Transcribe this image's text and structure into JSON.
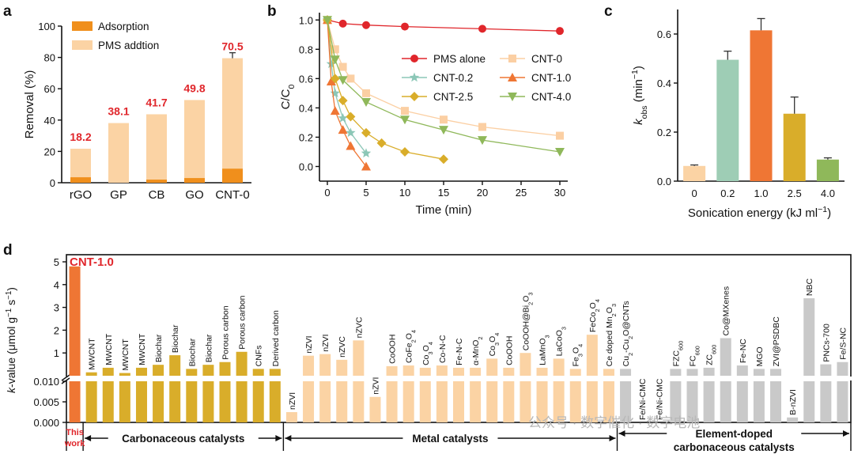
{
  "watermark": "公众号 · 数字催化 · 数字电池",
  "colors": {
    "adsorption": "#f08f1c",
    "pms": "#fbd3a4",
    "red_label": "#e0262b",
    "cnt10_bar": "#ef7634",
    "carbon_bar": "#d9ad2a",
    "metal_bar": "#fbd3a4",
    "doped_bar": "#c9c9c9"
  },
  "chart_data": [
    {
      "panel": "a",
      "type": "bar",
      "stacked": true,
      "categories": [
        "rGO",
        "GP",
        "CB",
        "GO",
        "CNT-0"
      ],
      "series": [
        {
          "name": "Adsorption",
          "values": [
            3.5,
            0,
            2,
            3,
            9
          ]
        },
        {
          "name": "PMS addtion",
          "values": [
            18.2,
            38.1,
            41.7,
            49.8,
            70.5
          ]
        }
      ],
      "labels": [
        "18.2",
        "38.1",
        "41.7",
        "49.8",
        "70.5"
      ],
      "error_total": [
        0,
        0,
        0,
        0,
        3.5
      ],
      "ylabel": "Removal (%)",
      "ylim": [
        0,
        100
      ],
      "yticks": [
        "0",
        "20",
        "40",
        "60",
        "80",
        "100"
      ],
      "legend": "top-left"
    },
    {
      "panel": "b",
      "type": "line",
      "xlabel": "Time (min)",
      "ylabel": "C/C0",
      "xlim": [
        0,
        30
      ],
      "ylim": [
        -0.1,
        1.05
      ],
      "xticks": [
        "0",
        "5",
        "10",
        "15",
        "20",
        "25",
        "30"
      ],
      "yticks": [
        "0.0",
        "0.2",
        "0.4",
        "0.6",
        "0.8",
        "1.0"
      ],
      "series": [
        {
          "name": "PMS alone",
          "color": "#e0262b",
          "marker": "circle",
          "x": [
            0,
            2,
            5,
            10,
            20,
            30
          ],
          "y": [
            1.0,
            0.975,
            0.965,
            0.955,
            0.94,
            0.925
          ]
        },
        {
          "name": "CNT-0",
          "color": "#fbcfa3",
          "marker": "square",
          "x": [
            0,
            1,
            2,
            3,
            5,
            10,
            15,
            20,
            30
          ],
          "y": [
            1.0,
            0.8,
            0.68,
            0.6,
            0.5,
            0.38,
            0.32,
            0.27,
            0.21
          ]
        },
        {
          "name": "CNT-0.2",
          "color": "#8cc7b7",
          "marker": "star",
          "x": [
            0,
            0.5,
            1,
            2,
            3,
            5
          ],
          "y": [
            1.0,
            0.7,
            0.5,
            0.33,
            0.23,
            0.09
          ]
        },
        {
          "name": "CNT-1.0",
          "color": "#ef7634",
          "marker": "triangle-up",
          "x": [
            0,
            0.5,
            1,
            2,
            3,
            5
          ],
          "y": [
            1.0,
            0.58,
            0.38,
            0.25,
            0.14,
            0.0
          ]
        },
        {
          "name": "CNT-2.5",
          "color": "#d9ad2a",
          "marker": "diamond",
          "x": [
            0,
            1,
            2,
            3,
            5,
            7,
            10,
            15
          ],
          "y": [
            1.0,
            0.6,
            0.45,
            0.34,
            0.23,
            0.16,
            0.1,
            0.05
          ]
        },
        {
          "name": "CNT-4.0",
          "color": "#8fb85a",
          "marker": "triangle-down",
          "x": [
            0,
            1,
            2,
            5,
            10,
            15,
            20,
            30
          ],
          "y": [
            1.0,
            0.73,
            0.59,
            0.44,
            0.32,
            0.25,
            0.18,
            0.1
          ]
        }
      ]
    },
    {
      "panel": "c",
      "type": "bar",
      "categories": [
        "0",
        "0.2",
        "1.0",
        "2.5",
        "4.0"
      ],
      "values": [
        0.062,
        0.495,
        0.615,
        0.275,
        0.088
      ],
      "errors": [
        0.004,
        0.035,
        0.048,
        0.068,
        0.007
      ],
      "colors": [
        "#fbd3a4",
        "#9ecdb5",
        "#ef7634",
        "#d9ad2a",
        "#8fb85a"
      ],
      "xlabel": "Sonication energy (kJ ml-1)",
      "ylabel": "kobs (min-1)",
      "ylim": [
        0,
        0.7
      ],
      "yticks": [
        "0.0",
        "0.2",
        "0.4",
        "0.6"
      ]
    },
    {
      "panel": "d",
      "type": "bar",
      "ylabel": "k-value (μmol g-1 s-1)",
      "ylim_lower": [
        0,
        0.01
      ],
      "ylim_upper": [
        0.5,
        5
      ],
      "yticks_lower": [
        "0.000",
        "0.005",
        "0.010"
      ],
      "yticks_upper": [
        "1",
        "2",
        "3",
        "4",
        "5"
      ],
      "highlight_label": "CNT-1.0",
      "group_labels": [
        "This work",
        "Carbonaceous catalysts",
        "Metal catalysts",
        "Element-doped carbonaceous catalysts"
      ],
      "items": [
        {
          "label": "CNT-1.0",
          "group": "this",
          "value": 4.8
        },
        {
          "label": "MWCNT",
          "group": "carbon",
          "value": 0.15
        },
        {
          "label": "MWCNT",
          "group": "carbon",
          "value": 0.35
        },
        {
          "label": "MWCNT",
          "group": "carbon",
          "value": 0.05
        },
        {
          "label": "MWCNT",
          "group": "carbon",
          "value": 0.35
        },
        {
          "label": "Biochar",
          "group": "carbon",
          "value": 0.48
        },
        {
          "label": "Biochar",
          "group": "carbon",
          "value": 0.9
        },
        {
          "label": "Biochar",
          "group": "carbon",
          "value": 0.3
        },
        {
          "label": "Biochar",
          "group": "carbon",
          "value": 0.48
        },
        {
          "label": "Porous carbon",
          "group": "carbon",
          "value": 0.6
        },
        {
          "label": "Porous carbon",
          "group": "carbon",
          "value": 1.05
        },
        {
          "label": "CNFs",
          "group": "carbon",
          "value": 0.3
        },
        {
          "label": "Derived carbon",
          "group": "carbon",
          "value": 0.3
        },
        {
          "label": "nZVI",
          "group": "metal",
          "value": 0.0025
        },
        {
          "label": "nZVI",
          "group": "metal",
          "value": 0.88
        },
        {
          "label": "nZVI",
          "group": "metal",
          "value": 0.95
        },
        {
          "label": "nZVC",
          "group": "metal",
          "value": 0.7
        },
        {
          "label": "nZVC",
          "group": "metal",
          "value": 1.55
        },
        {
          "label": "nZVI",
          "group": "metal",
          "value": 0.0062
        },
        {
          "label": "CoOOH",
          "group": "metal",
          "value": 0.42
        },
        {
          "label": "CoFe2O4",
          "group": "metal",
          "value": 0.45
        },
        {
          "label": "Co3O4",
          "group": "metal",
          "value": 0.35
        },
        {
          "label": "Co-N-C",
          "group": "metal",
          "value": 0.45
        },
        {
          "label": "Fe-N-C",
          "group": "metal",
          "value": 0.35
        },
        {
          "label": "α-MnO2",
          "group": "metal",
          "value": 0.35
        },
        {
          "label": "Co3O4",
          "group": "metal",
          "value": 0.75
        },
        {
          "label": "CoOOH",
          "group": "metal",
          "value": 0.35
        },
        {
          "label": "CoOOH@Bi2O3",
          "group": "metal",
          "value": 1.0
        },
        {
          "label": "LaMnO3",
          "group": "metal",
          "value": 0.35
        },
        {
          "label": "LaCoO3",
          "group": "metal",
          "value": 0.75
        },
        {
          "label": "Fe3O4",
          "group": "metal",
          "value": 0.3
        },
        {
          "label": "FeCo2O4",
          "group": "metal",
          "value": 1.8
        },
        {
          "label": "Ce doped Mn2O3",
          "group": "metal",
          "value": 0.3
        },
        {
          "label": "Cu2-Cu2O@CNTs",
          "group": "doped",
          "value": 0.3
        },
        {
          "label": "Fe/Ni-CMC",
          "group": "doped",
          "value": 0.0
        },
        {
          "label": "Fe/Ni-CMC",
          "group": "doped",
          "value": 0.0
        },
        {
          "label": "FZC600",
          "group": "doped",
          "value": 0.3
        },
        {
          "label": "FC600",
          "group": "doped",
          "value": 0.3
        },
        {
          "label": "ZC600",
          "group": "doped",
          "value": 0.35
        },
        {
          "label": "Co@MXenes",
          "group": "doped",
          "value": 1.65
        },
        {
          "label": "Fe-NC",
          "group": "doped",
          "value": 0.45
        },
        {
          "label": "MGO",
          "group": "doped",
          "value": 0.3
        },
        {
          "label": "ZVI@PSDBC",
          "group": "doped",
          "value": 0.3
        },
        {
          "label": "B-nZVI",
          "group": "doped",
          "value": 0.0012
        },
        {
          "label": "NBC",
          "group": "doped",
          "value": 3.4
        },
        {
          "label": "PNCs-700",
          "group": "doped",
          "value": 0.5
        },
        {
          "label": "Fe/S-NC",
          "group": "doped",
          "value": 0.6
        }
      ]
    }
  ]
}
